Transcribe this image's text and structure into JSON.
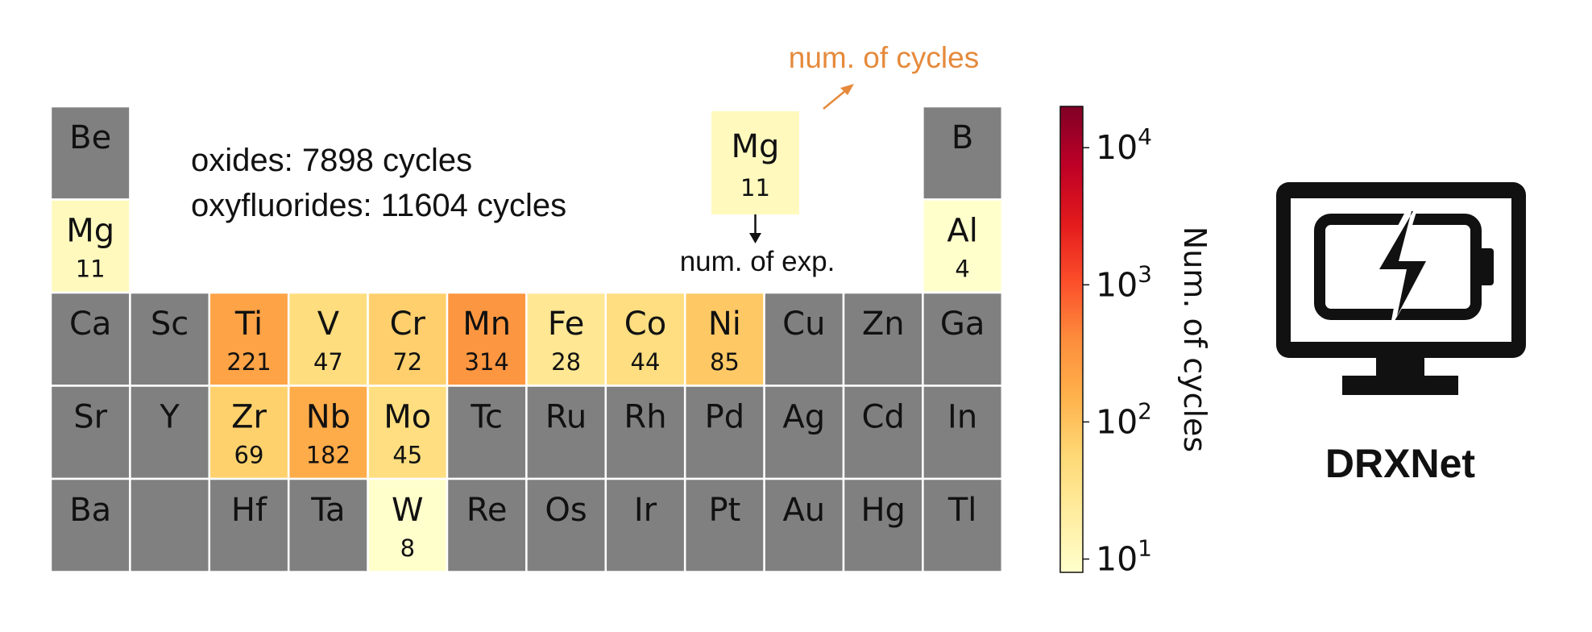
{
  "chart_data": {
    "type": "heatmap",
    "layout_name": "periodic-table",
    "value_label": "num. of exp.",
    "scale": "log",
    "colormap": "YlOrRd",
    "no_data_color": "#808080",
    "elements": [
      {
        "symbol": "Be",
        "row": 0,
        "col": 0
      },
      {
        "symbol": "B",
        "row": 0,
        "col": 11
      },
      {
        "symbol": "Mg",
        "row": 1,
        "col": 0,
        "value": 11
      },
      {
        "symbol": "Al",
        "row": 1,
        "col": 11,
        "value": 4
      },
      {
        "symbol": "Ca",
        "row": 2,
        "col": 0
      },
      {
        "symbol": "Sc",
        "row": 2,
        "col": 1
      },
      {
        "symbol": "Ti",
        "row": 2,
        "col": 2,
        "value": 221
      },
      {
        "symbol": "V",
        "row": 2,
        "col": 3,
        "value": 47
      },
      {
        "symbol": "Cr",
        "row": 2,
        "col": 4,
        "value": 72
      },
      {
        "symbol": "Mn",
        "row": 2,
        "col": 5,
        "value": 314
      },
      {
        "symbol": "Fe",
        "row": 2,
        "col": 6,
        "value": 28
      },
      {
        "symbol": "Co",
        "row": 2,
        "col": 7,
        "value": 44
      },
      {
        "symbol": "Ni",
        "row": 2,
        "col": 8,
        "value": 85
      },
      {
        "symbol": "Cu",
        "row": 2,
        "col": 9
      },
      {
        "symbol": "Zn",
        "row": 2,
        "col": 10
      },
      {
        "symbol": "Ga",
        "row": 2,
        "col": 11
      },
      {
        "symbol": "Sr",
        "row": 3,
        "col": 0
      },
      {
        "symbol": "Y",
        "row": 3,
        "col": 1
      },
      {
        "symbol": "Zr",
        "row": 3,
        "col": 2,
        "value": 69
      },
      {
        "symbol": "Nb",
        "row": 3,
        "col": 3,
        "value": 182
      },
      {
        "symbol": "Mo",
        "row": 3,
        "col": 4,
        "value": 45
      },
      {
        "symbol": "Tc",
        "row": 3,
        "col": 5
      },
      {
        "symbol": "Ru",
        "row": 3,
        "col": 6
      },
      {
        "symbol": "Rh",
        "row": 3,
        "col": 7
      },
      {
        "symbol": "Pd",
        "row": 3,
        "col": 8
      },
      {
        "symbol": "Ag",
        "row": 3,
        "col": 9
      },
      {
        "symbol": "Cd",
        "row": 3,
        "col": 10
      },
      {
        "symbol": "In",
        "row": 3,
        "col": 11
      },
      {
        "symbol": "Ba",
        "row": 4,
        "col": 0
      },
      {
        "symbol": "",
        "row": 4,
        "col": 1
      },
      {
        "symbol": "Hf",
        "row": 4,
        "col": 2
      },
      {
        "symbol": "Ta",
        "row": 4,
        "col": 3
      },
      {
        "symbol": "W",
        "row": 4,
        "col": 4,
        "value": 8
      },
      {
        "symbol": "Re",
        "row": 4,
        "col": 5
      },
      {
        "symbol": "Os",
        "row": 4,
        "col": 6
      },
      {
        "symbol": "Ir",
        "row": 4,
        "col": 7
      },
      {
        "symbol": "Pt",
        "row": 4,
        "col": 8
      },
      {
        "symbol": "Au",
        "row": 4,
        "col": 9
      },
      {
        "symbol": "Hg",
        "row": 4,
        "col": 10
      },
      {
        "symbol": "Tl",
        "row": 4,
        "col": 11
      }
    ],
    "colorbar": {
      "label": "Num. of cycles",
      "range": [
        8,
        20000
      ],
      "ticks": [
        {
          "value": 10,
          "base": "10",
          "exp": "1"
        },
        {
          "value": 100,
          "base": "10",
          "exp": "2"
        },
        {
          "value": 1000,
          "base": "10",
          "exp": "3"
        },
        {
          "value": 10000,
          "base": "10",
          "exp": "4"
        }
      ]
    },
    "annotations": {
      "oxides": "oxides: 7898 cycles",
      "oxyfluorides": "oxyfluorides: 11604 cycles"
    },
    "legend_example": {
      "symbol": "Mg",
      "value": "11",
      "cycles_label": "num. of cycles",
      "exp_label": "num. of exp."
    }
  },
  "brand": {
    "name": "DRXNet",
    "icon": "monitor-battery-icon"
  }
}
